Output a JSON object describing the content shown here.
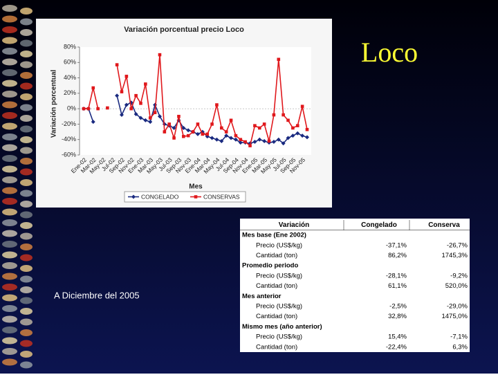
{
  "slide_title": "Loco",
  "footer": "A Diciembre del 2005",
  "chart_data": {
    "type": "line",
    "title": "Variación porcentual precio Loco",
    "x_label": "Mes",
    "y_label": "Variación porcentual",
    "categories": [
      "Ene-02",
      null,
      "Mar-02",
      null,
      "May-02",
      null,
      "Jul-02",
      null,
      "Sep-02",
      null,
      "Nov-02",
      null,
      "Ene-03",
      null,
      "Mar-03",
      null,
      "May-03",
      null,
      "Jul-03",
      null,
      "Sep-03",
      null,
      "Nov-03",
      null,
      "Ene-04",
      null,
      "Mar-04",
      null,
      "May-04",
      null,
      "Jul-04",
      null,
      "Sep-04",
      null,
      "Nov-04",
      null,
      "Ene-05",
      null,
      "Mar-05",
      null,
      "May-05",
      null,
      "Jul-05",
      null,
      "Sep-05",
      null,
      "Nov-05",
      null
    ],
    "series": [
      {
        "name": "CONGELADO",
        "color": "#1a2a80",
        "marker": "diamond",
        "values": [
          0,
          0,
          -17,
          null,
          null,
          null,
          null,
          17,
          -8,
          5,
          8,
          -7,
          -12,
          -15,
          -17,
          5,
          -10,
          -20,
          -22,
          -25,
          -15,
          -25,
          -28,
          -30,
          -33,
          -30,
          -36,
          -38,
          -40,
          -42,
          -35,
          -38,
          -40,
          -44,
          -44,
          -45,
          -43,
          -40,
          -42,
          -44,
          -43,
          -40,
          -45,
          -38,
          -35,
          -32,
          -35,
          -37
        ]
      },
      {
        "name": "CONSERVAS",
        "color": "#e0181c",
        "marker": "square",
        "values": [
          0,
          0,
          27,
          0,
          null,
          1,
          null,
          57,
          22,
          42,
          0,
          17,
          7,
          32,
          -12,
          -5,
          70,
          -30,
          -20,
          -38,
          -10,
          -36,
          -35,
          -30,
          -20,
          -33,
          -33,
          -20,
          5,
          -25,
          -30,
          -15,
          -35,
          -40,
          -43,
          -48,
          -22,
          -25,
          -20,
          -42,
          -8,
          64,
          -8,
          -15,
          -25,
          -22,
          3,
          -27
        ]
      }
    ],
    "ylim": [
      -60,
      80
    ],
    "yticks": [
      {
        "value": 80,
        "label": "80%"
      },
      {
        "value": 60,
        "label": "60%"
      },
      {
        "value": 40,
        "label": "40%"
      },
      {
        "value": 20,
        "label": "20%"
      },
      {
        "value": 0,
        "label": "0%"
      },
      {
        "value": -20,
        "label": "-20%"
      },
      {
        "value": -40,
        "label": "-40%"
      },
      {
        "value": -60,
        "label": "-60%"
      }
    ],
    "grid": false,
    "legend": "bottom"
  },
  "table": {
    "header": [
      "Variación",
      "Congelado",
      "Conserva"
    ],
    "sections": [
      {
        "title": "Mes base (Ene 2002)",
        "rows": [
          [
            "Precio (US$/kg)",
            "-37,1%",
            "-26,7%"
          ],
          [
            "Cantidad (ton)",
            "86,2%",
            "1745,3%"
          ]
        ]
      },
      {
        "title": "Promedio periodo",
        "rows": [
          [
            "Precio (US$/kg)",
            "-28,1%",
            "-9,2%"
          ],
          [
            "Cantidad (ton)",
            "61,1%",
            "520,0%"
          ]
        ]
      },
      {
        "title": "Mes anterior",
        "rows": [
          [
            "Precio (US$/kg)",
            "-2,5%",
            "-29,0%"
          ],
          [
            "Cantidad (ton)",
            "32,8%",
            "1475,0%"
          ]
        ]
      },
      {
        "title": "Mismo mes (año anterior)",
        "rows": [
          [
            "Precio (US$/kg)",
            "15,4%",
            "-7,1%"
          ],
          [
            "Cantidad (ton)",
            "-22,4%",
            "6,3%"
          ]
        ]
      }
    ]
  }
}
